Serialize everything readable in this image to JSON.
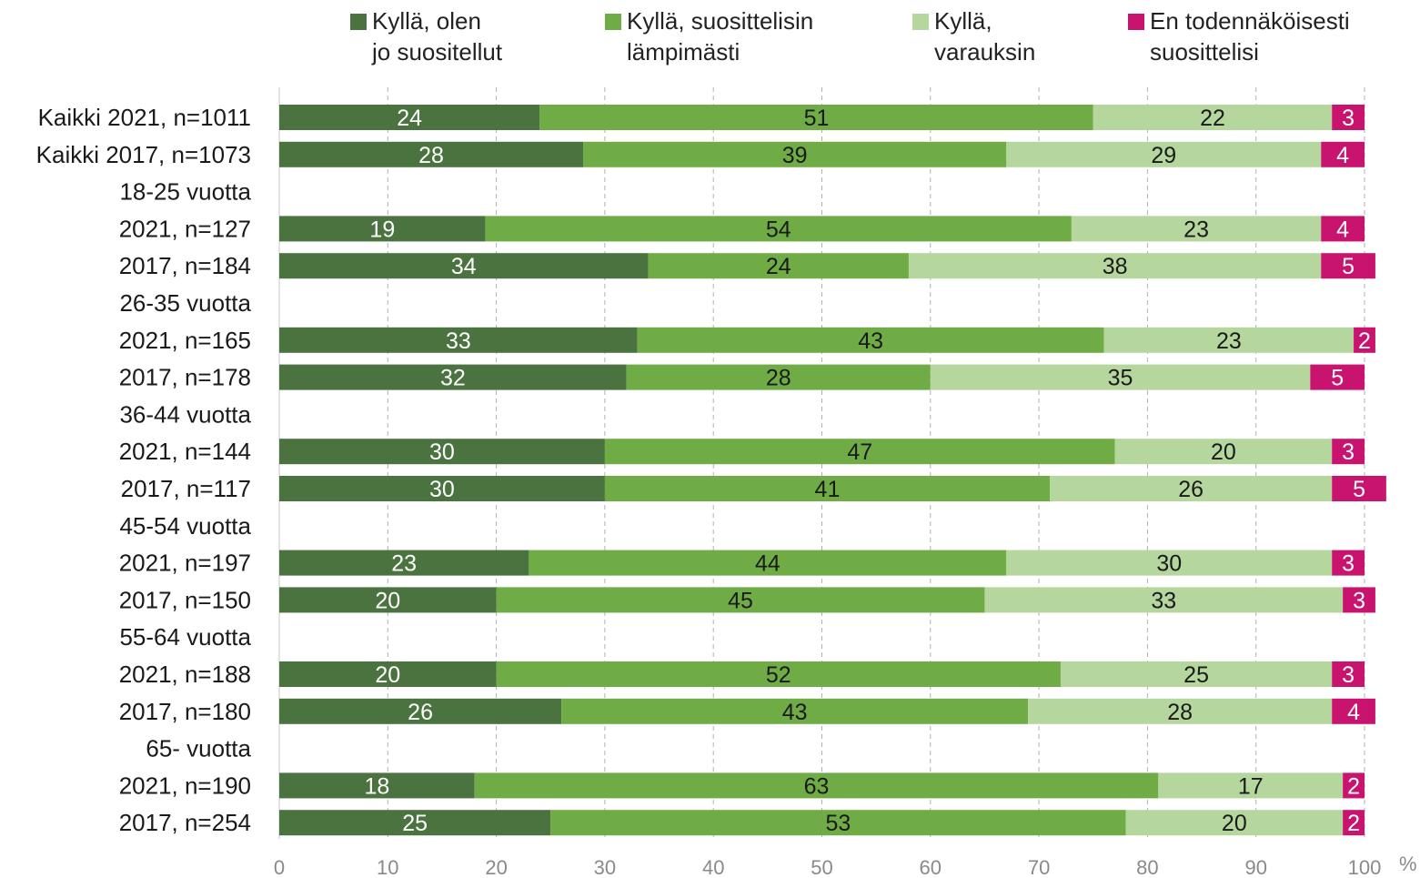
{
  "chart_data": {
    "type": "bar",
    "orientation": "horizontal",
    "stacked": true,
    "categories": [
      "Kaikki 2021, n=1011",
      "Kaikki 2017, n=1073",
      "18-25 vuotta",
      "2021, n=127",
      "2017, n=184",
      "26-35 vuotta",
      "2021, n=165",
      "2017, n=178",
      "36-44 vuotta",
      "2021, n=144",
      "2017, n=117",
      "45-54 vuotta",
      "2021, n=197",
      "2017, n=150",
      "55-64 vuotta",
      "2021, n=188",
      "2017, n=180",
      "65- vuotta",
      "2021, n=190",
      "2017, n=254"
    ],
    "series": [
      {
        "name": "Kyllä, olen\njo suositellut",
        "color": "#4a7340",
        "label_color": "#ffffff",
        "values": [
          24,
          28,
          null,
          19,
          34,
          null,
          33,
          32,
          null,
          30,
          30,
          null,
          23,
          20,
          null,
          20,
          26,
          null,
          18,
          25
        ]
      },
      {
        "name": "Kyllä, suosittelisin\nlämpimästi",
        "color": "#6fac46",
        "label_color": "#1a1a1a",
        "values": [
          51,
          39,
          null,
          54,
          24,
          null,
          43,
          28,
          null,
          47,
          41,
          null,
          44,
          45,
          null,
          52,
          43,
          null,
          63,
          53
        ]
      },
      {
        "name": "Kyllä,\nvarauksin",
        "color": "#b5d79e",
        "label_color": "#1a1a1a",
        "values": [
          22,
          29,
          null,
          23,
          38,
          null,
          23,
          35,
          null,
          20,
          26,
          null,
          30,
          33,
          null,
          25,
          28,
          null,
          17,
          20
        ]
      },
      {
        "name": "En todennäköisesti\nsuosittelisi",
        "color": "#c8136f",
        "label_color": "#ffffff",
        "values": [
          3,
          4,
          null,
          4,
          5,
          null,
          2,
          5,
          null,
          3,
          5,
          null,
          3,
          3,
          null,
          3,
          4,
          null,
          2,
          2
        ]
      }
    ],
    "xlim": [
      0,
      100
    ],
    "xticks": [
      0,
      10,
      20,
      30,
      40,
      50,
      60,
      70,
      80,
      90,
      100
    ],
    "xunit": "%",
    "grid": "vertical dashed",
    "legend_position": "top"
  }
}
